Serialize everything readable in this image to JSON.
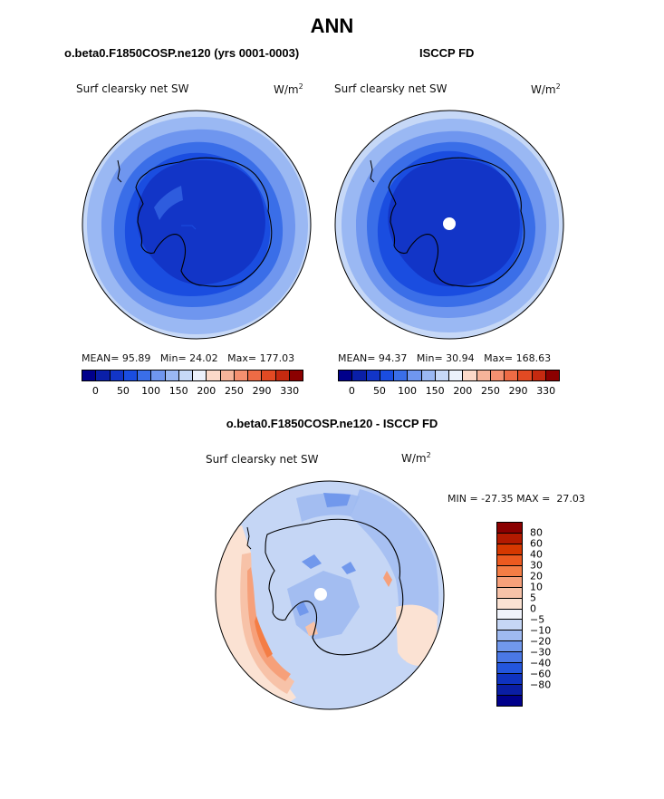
{
  "title": "ANN",
  "panels": [
    {
      "case_title": "o.beta0.F1850COSP.ne120 (yrs 0001-0003)",
      "variable": "Surf clearsky net SW",
      "units_base": "W/m",
      "units_exp": "2",
      "stats": {
        "mean_label": "MEAN=",
        "mean": "95.89",
        "min_label": "Min=",
        "min": "24.02",
        "max_label": "Max=",
        "max": "177.03"
      }
    },
    {
      "case_title": "ISCCP FD",
      "variable": "Surf clearsky net SW",
      "units_base": "W/m",
      "units_exp": "2",
      "stats": {
        "mean_label": "MEAN=",
        "mean": "94.37",
        "min_label": "Min=",
        "min": "30.94",
        "max_label": "Max=",
        "max": "168.63"
      }
    }
  ],
  "colorbar": {
    "colors": [
      "#00008b",
      "#0a1fa8",
      "#1235c7",
      "#1a4de0",
      "#3a6ee8",
      "#6f96ef",
      "#9ab8f3",
      "#c6d8f7",
      "#ecf1fb",
      "#fbd9c9",
      "#f6b49a",
      "#f49070",
      "#ee6b45",
      "#e24a23",
      "#c52a10",
      "#8b0000"
    ],
    "labels": [
      "0",
      "50",
      "100",
      "150",
      "200",
      "250",
      "290",
      "330"
    ]
  },
  "diff": {
    "title": "o.beta0.F1850COSP.ne120 - ISCCP FD",
    "variable": "Surf clearsky net SW",
    "units_base": "W/m",
    "units_exp": "2",
    "minmax": "MIN = -27.35 MAX =  27.03",
    "colorbar_colors": [
      "#8b0000",
      "#b31a00",
      "#d63800",
      "#ec5a20",
      "#f47d45",
      "#f6a07a",
      "#f7c2a8",
      "#fbe2d3",
      "#f0f3fb",
      "#c5d6f5",
      "#9fbaf1",
      "#7198ec",
      "#4a78e6",
      "#2356dd",
      "#0f33c0",
      "#0a1ea4",
      "#00008b"
    ],
    "colorbar_labels": [
      "80",
      "60",
      "40",
      "30",
      "20",
      "10",
      "5",
      "0",
      "−5",
      "−10",
      "−20",
      "−30",
      "−40",
      "−60",
      "−80"
    ]
  }
}
